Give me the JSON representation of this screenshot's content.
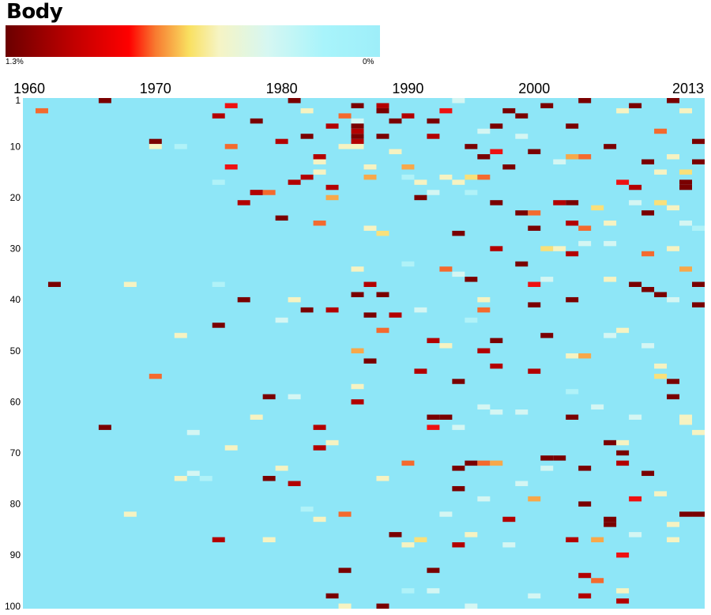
{
  "chart_data": {
    "type": "heatmap",
    "title": "Body",
    "legend": {
      "min_label": "1.3%",
      "max_label": "0%"
    },
    "x_ticks": [
      "1960",
      "1970",
      "1980",
      "1990",
      "2000",
      "2013"
    ],
    "y_ticks": [
      "1",
      "10",
      "20",
      "30",
      "40",
      "50",
      "60",
      "70",
      "80",
      "90",
      "100"
    ],
    "x_range": [
      1960,
      2013
    ],
    "y_range": [
      1,
      100
    ],
    "background_value": 0,
    "max_value": 1.3,
    "colors": {
      "zero": "#8ee6f7",
      "scale": [
        "#7a0000",
        "#b30000",
        "#ee1111",
        "#f46a2e",
        "#f7a84a",
        "#f9e07a",
        "#f6f3c2",
        "#d4f6f3",
        "#b0f2f8",
        "#8ee6f7"
      ]
    },
    "cells": [
      [
        1961,
        3,
        0.9
      ],
      [
        1966,
        1,
        1.3
      ],
      [
        1975,
        4,
        1.1
      ],
      [
        1976,
        2,
        0.95
      ],
      [
        1976,
        10,
        0.8
      ],
      [
        1976,
        14,
        1.0
      ],
      [
        1977,
        21,
        1.2
      ],
      [
        1978,
        5,
        1.3
      ],
      [
        1980,
        9,
        1.2
      ],
      [
        1981,
        1,
        1.3
      ],
      [
        1982,
        3,
        0.4
      ],
      [
        1982,
        8,
        1.3
      ],
      [
        1983,
        12,
        1.1
      ],
      [
        1983,
        13,
        0.5
      ],
      [
        1984,
        6,
        1.1
      ],
      [
        1985,
        4,
        0.8
      ],
      [
        1986,
        2,
        1.3
      ],
      [
        1986,
        7,
        0.4
      ],
      [
        1986,
        9,
        1.1
      ],
      [
        1987,
        14,
        0.9
      ],
      [
        1987,
        16,
        0.7
      ],
      [
        1988,
        2,
        1.2
      ],
      [
        1988,
        3,
        1.3
      ],
      [
        1988,
        8,
        1.3
      ],
      [
        1989,
        5,
        1.3
      ],
      [
        1989,
        11,
        0.5
      ],
      [
        1990,
        4,
        1.2
      ],
      [
        1990,
        14,
        0.7
      ],
      [
        1991,
        17,
        0.4
      ],
      [
        1991,
        20,
        1.3
      ],
      [
        1992,
        5,
        1.3
      ],
      [
        1992,
        8,
        1.2
      ],
      [
        1993,
        3,
        1.0
      ],
      [
        1993,
        16,
        0.4
      ],
      [
        1994,
        1,
        0.3
      ],
      [
        1995,
        10,
        1.3
      ],
      [
        1995,
        16,
        0.6
      ],
      [
        1996,
        7,
        0.3
      ],
      [
        1996,
        12,
        1.3
      ],
      [
        1996,
        16,
        0.8
      ],
      [
        1997,
        6,
        1.3
      ],
      [
        1997,
        11,
        1.0
      ],
      [
        1998,
        3,
        1.3
      ],
      [
        1998,
        14,
        1.3
      ],
      [
        1999,
        4,
        1.3
      ],
      [
        1999,
        8,
        0.3
      ],
      [
        2000,
        11,
        1.3
      ],
      [
        2001,
        2,
        1.3
      ],
      [
        2002,
        13,
        0.3
      ],
      [
        2002,
        21,
        1.2
      ],
      [
        2003,
        6,
        1.3
      ],
      [
        2003,
        12,
        0.7
      ],
      [
        2004,
        1,
        1.3
      ],
      [
        2004,
        12,
        0.8
      ],
      [
        2006,
        10,
        1.3
      ],
      [
        2007,
        3,
        0.5
      ],
      [
        2007,
        17,
        1.0
      ],
      [
        2008,
        2,
        1.3
      ],
      [
        2008,
        18,
        1.2
      ],
      [
        2009,
        13,
        1.3
      ],
      [
        2010,
        7,
        0.8
      ],
      [
        2010,
        15,
        0.4
      ],
      [
        2011,
        1,
        1.3
      ],
      [
        2011,
        12,
        0.5
      ],
      [
        2012,
        3,
        0.4
      ],
      [
        2012,
        18,
        1.3
      ],
      [
        2013,
        9,
        1.3
      ],
      [
        2013,
        13,
        1.3
      ],
      [
        1970,
        9,
        1.3
      ],
      [
        1970,
        10,
        0.4
      ],
      [
        1972,
        10,
        0.2
      ],
      [
        1975,
        17,
        0.2
      ],
      [
        1978,
        19,
        1.3
      ],
      [
        1978,
        19,
        1.2
      ],
      [
        1979,
        19,
        0.9
      ],
      [
        1981,
        17,
        1.2
      ],
      [
        1982,
        16,
        1.1
      ],
      [
        1983,
        15,
        0.4
      ],
      [
        1984,
        18,
        1.2
      ],
      [
        1984,
        20,
        0.7
      ],
      [
        1985,
        10,
        0.4
      ],
      [
        1986,
        5,
        0.3
      ],
      [
        1986,
        10,
        0.5
      ],
      [
        1987,
        14,
        0.4
      ],
      [
        1986,
        6,
        1.3
      ],
      [
        1986,
        8,
        1.3
      ],
      [
        1986,
        7,
        1.1
      ],
      [
        1990,
        16,
        0.2
      ],
      [
        1992,
        19,
        0.3
      ],
      [
        1994,
        17,
        0.4
      ],
      [
        1995,
        19,
        0.2
      ],
      [
        1997,
        21,
        1.3
      ],
      [
        1999,
        23,
        1.3
      ],
      [
        2000,
        23,
        0.8
      ],
      [
        2003,
        21,
        1.3
      ],
      [
        2003,
        25,
        1.2
      ],
      [
        2004,
        26,
        0.9
      ],
      [
        2004,
        29,
        0.3
      ],
      [
        2005,
        22,
        0.6
      ],
      [
        2006,
        25,
        0.4
      ],
      [
        2008,
        21,
        0.3
      ],
      [
        2009,
        23,
        1.3
      ],
      [
        2010,
        21,
        0.6
      ],
      [
        2011,
        22,
        0.5
      ],
      [
        2012,
        15,
        0.6
      ],
      [
        2012,
        17,
        1.3
      ],
      [
        2012,
        25,
        0.3
      ],
      [
        2013,
        26,
        0.2
      ],
      [
        1980,
        24,
        1.3
      ],
      [
        1983,
        25,
        0.9
      ],
      [
        1987,
        26,
        0.5
      ],
      [
        1988,
        27,
        0.6
      ],
      [
        1994,
        27,
        1.3
      ],
      [
        1997,
        30,
        1.1
      ],
      [
        2000,
        26,
        1.3
      ],
      [
        2001,
        30,
        0.6
      ],
      [
        2002,
        30,
        0.5
      ],
      [
        2003,
        31,
        1.1
      ],
      [
        2006,
        29,
        0.3
      ],
      [
        2009,
        31,
        0.8
      ],
      [
        2011,
        30,
        0.5
      ],
      [
        2012,
        34,
        0.7
      ],
      [
        1986,
        34,
        0.5
      ],
      [
        1990,
        33,
        0.2
      ],
      [
        1993,
        34,
        0.9
      ],
      [
        1994,
        35,
        0.3
      ],
      [
        1995,
        36,
        1.3
      ],
      [
        1999,
        33,
        1.3
      ],
      [
        2001,
        36,
        0.3
      ],
      [
        2006,
        36,
        0.5
      ],
      [
        2008,
        37,
        1.3
      ],
      [
        2009,
        38,
        1.3
      ],
      [
        2013,
        37,
        1.3
      ],
      [
        2013,
        41,
        1.3
      ],
      [
        2010,
        39,
        1.3
      ],
      [
        2011,
        40,
        0.3
      ],
      [
        1962,
        37,
        1.3
      ],
      [
        1968,
        37,
        0.4
      ],
      [
        1975,
        37,
        0.2
      ],
      [
        1977,
        40,
        1.3
      ],
      [
        1980,
        44,
        0.3
      ],
      [
        1981,
        40,
        0.4
      ],
      [
        1982,
        42,
        1.3
      ],
      [
        1984,
        42,
        1.2
      ],
      [
        1986,
        39,
        1.3
      ],
      [
        1986,
        50,
        0.7
      ],
      [
        1987,
        37,
        1.2
      ],
      [
        1987,
        43,
        1.3
      ],
      [
        1988,
        39,
        1.3
      ],
      [
        1989,
        43,
        1.2
      ],
      [
        1988,
        46,
        0.9
      ],
      [
        1991,
        42,
        0.3
      ],
      [
        1992,
        48,
        1.2
      ],
      [
        1993,
        49,
        0.5
      ],
      [
        1995,
        44,
        0.2
      ],
      [
        1996,
        40,
        0.5
      ],
      [
        1996,
        42,
        0.9
      ],
      [
        1996,
        50,
        1.2
      ],
      [
        1997,
        48,
        1.3
      ],
      [
        1997,
        53,
        1.2
      ],
      [
        2000,
        37,
        1.0
      ],
      [
        2000,
        41,
        1.3
      ],
      [
        2001,
        47,
        1.3
      ],
      [
        2003,
        40,
        1.3
      ],
      [
        2003,
        51,
        0.5
      ],
      [
        2004,
        51,
        0.7
      ],
      [
        2006,
        47,
        0.3
      ],
      [
        2007,
        46,
        0.5
      ],
      [
        2009,
        49,
        0.3
      ],
      [
        2010,
        53,
        0.5
      ],
      [
        2010,
        55,
        0.6
      ],
      [
        2011,
        56,
        1.3
      ],
      [
        2011,
        59,
        1.3
      ],
      [
        1975,
        45,
        1.3
      ],
      [
        1972,
        47,
        0.4
      ],
      [
        1970,
        55,
        0.8
      ],
      [
        1986,
        57,
        0.5
      ],
      [
        1986,
        60,
        1.2
      ],
      [
        1987,
        52,
        1.3
      ],
      [
        1991,
        54,
        1.2
      ],
      [
        1994,
        56,
        1.3
      ],
      [
        2000,
        54,
        1.1
      ],
      [
        1979,
        59,
        1.3
      ],
      [
        1981,
        59,
        0.3
      ],
      [
        1978,
        63,
        0.5
      ],
      [
        1976,
        69,
        0.5
      ],
      [
        1973,
        66,
        0.3
      ],
      [
        1966,
        65,
        1.3
      ],
      [
        1983,
        65,
        1.2
      ],
      [
        1983,
        69,
        1.2
      ],
      [
        1984,
        68,
        0.4
      ],
      [
        1992,
        63,
        1.3
      ],
      [
        1992,
        65,
        1.0
      ],
      [
        1993,
        63,
        1.3
      ],
      [
        1994,
        65,
        0.3
      ],
      [
        1996,
        61,
        0.3
      ],
      [
        1997,
        62,
        0.3
      ],
      [
        1999,
        62,
        0.3
      ],
      [
        2003,
        58,
        0.2
      ],
      [
        2003,
        63,
        1.3
      ],
      [
        2005,
        61,
        0.3
      ],
      [
        2006,
        68,
        1.3
      ],
      [
        2007,
        68,
        0.4
      ],
      [
        2007,
        70,
        1.3
      ],
      [
        2008,
        63,
        0.3
      ],
      [
        2012,
        63,
        0.4
      ],
      [
        2012,
        64,
        0.5
      ],
      [
        2013,
        66,
        0.4
      ],
      [
        1968,
        82,
        0.5
      ],
      [
        1972,
        75,
        0.5
      ],
      [
        1973,
        74,
        0.3
      ],
      [
        1974,
        75,
        0.2
      ],
      [
        1975,
        87,
        1.2
      ],
      [
        1979,
        75,
        1.3
      ],
      [
        1979,
        87,
        0.5
      ],
      [
        1980,
        73,
        0.4
      ],
      [
        1981,
        76,
        1.2
      ],
      [
        1982,
        81,
        0.2
      ],
      [
        1983,
        83,
        0.4
      ],
      [
        1985,
        82,
        0.8
      ],
      [
        1985,
        93,
        1.3
      ],
      [
        1984,
        98,
        1.3
      ],
      [
        1985,
        100,
        0.5
      ],
      [
        1988,
        75,
        0.5
      ],
      [
        1988,
        100,
        1.3
      ],
      [
        1989,
        86,
        1.3
      ],
      [
        1990,
        72,
        0.9
      ],
      [
        1990,
        88,
        0.5
      ],
      [
        1991,
        87,
        0.6
      ],
      [
        1992,
        93,
        1.3
      ],
      [
        1992,
        97,
        0.3
      ],
      [
        1993,
        82,
        0.3
      ],
      [
        1994,
        73,
        1.3
      ],
      [
        1994,
        77,
        1.3
      ],
      [
        1994,
        88,
        1.2
      ],
      [
        1995,
        72,
        1.3
      ],
      [
        1995,
        86,
        0.5
      ],
      [
        1996,
        72,
        0.9
      ],
      [
        1996,
        79,
        0.3
      ],
      [
        1997,
        72,
        0.7
      ],
      [
        1998,
        83,
        1.2
      ],
      [
        1999,
        76,
        0.3
      ],
      [
        2000,
        79,
        0.7
      ],
      [
        2001,
        71,
        1.3
      ],
      [
        2001,
        73,
        0.3
      ],
      [
        2002,
        71,
        1.3
      ],
      [
        2003,
        87,
        1.2
      ],
      [
        2004,
        73,
        1.3
      ],
      [
        2004,
        80,
        1.3
      ],
      [
        2004,
        94,
        1.2
      ],
      [
        2004,
        98,
        1.2
      ],
      [
        2005,
        87,
        0.7
      ],
      [
        2005,
        95,
        0.8
      ],
      [
        2006,
        83,
        1.3
      ],
      [
        2006,
        84,
        1.3
      ],
      [
        2007,
        72,
        1.2
      ],
      [
        2007,
        90,
        1.0
      ],
      [
        2007,
        99,
        1.2
      ],
      [
        2008,
        79,
        1.0
      ],
      [
        2008,
        86,
        0.3
      ],
      [
        2009,
        74,
        1.3
      ],
      [
        2010,
        78,
        0.5
      ],
      [
        2011,
        84,
        0.5
      ],
      [
        2011,
        87,
        0.4
      ],
      [
        2012,
        82,
        1.3
      ],
      [
        2013,
        82,
        1.3
      ],
      [
        1995,
        100,
        0.3
      ],
      [
        2000,
        98,
        0.3
      ],
      [
        2007,
        97,
        0.4
      ],
      [
        1998,
        88,
        0.3
      ],
      [
        1990,
        97,
        0.2
      ]
    ]
  }
}
